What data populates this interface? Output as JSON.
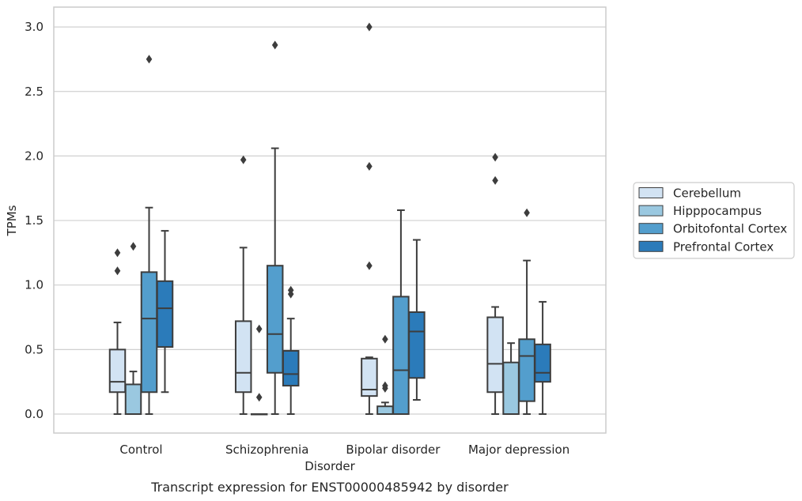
{
  "caption": "Transcript expression for ENST00000485942 by disorder",
  "chart_data": {
    "type": "box",
    "xlabel": "Disorder",
    "ylabel": "TPMs",
    "ylim": [
      -0.15,
      3.15
    ],
    "yticks": [
      "0.0",
      "0.5",
      "1.0",
      "1.5",
      "2.0",
      "2.5",
      "3.0"
    ],
    "grid": "horizontal",
    "legend_position": "right",
    "categories": [
      "Control",
      "Schizophrenia",
      "Bipolar disorder",
      "Major depression"
    ],
    "series": [
      {
        "name": "Cerebellum",
        "color": "#d2e3f3",
        "boxes": [
          {
            "whislo": 0.0,
            "q1": 0.17,
            "med": 0.25,
            "q3": 0.5,
            "whishi": 0.71,
            "fliers": [
              1.11,
              1.25
            ]
          },
          {
            "whislo": 0.0,
            "q1": 0.17,
            "med": 0.32,
            "q3": 0.72,
            "whishi": 1.29,
            "fliers": [
              1.97
            ]
          },
          {
            "whislo": 0.0,
            "q1": 0.14,
            "med": 0.19,
            "q3": 0.43,
            "whishi": 0.44,
            "fliers": [
              1.15,
              1.92,
              3.0
            ]
          },
          {
            "whislo": 0.0,
            "q1": 0.17,
            "med": 0.39,
            "q3": 0.75,
            "whishi": 0.83,
            "fliers": [
              1.81,
              1.99
            ]
          }
        ]
      },
      {
        "name": "Hipppocampus",
        "color": "#9ac8e0",
        "boxes": [
          {
            "whislo": 0.0,
            "q1": 0.0,
            "med": 0.0,
            "q3": 0.23,
            "whishi": 0.33,
            "fliers": [
              1.3
            ]
          },
          {
            "whislo": 0.0,
            "q1": 0.0,
            "med": 0.0,
            "q3": 0.0,
            "whishi": 0.0,
            "fliers": [
              0.13,
              0.66
            ]
          },
          {
            "whislo": 0.0,
            "q1": 0.0,
            "med": 0.0,
            "q3": 0.06,
            "whishi": 0.09,
            "fliers": [
              0.2,
              0.22,
              0.58
            ]
          },
          {
            "whislo": 0.0,
            "q1": 0.0,
            "med": 0.0,
            "q3": 0.4,
            "whishi": 0.55,
            "fliers": []
          }
        ]
      },
      {
        "name": "Orbitofontal Cortex",
        "color": "#539ecd",
        "boxes": [
          {
            "whislo": 0.0,
            "q1": 0.17,
            "med": 0.74,
            "q3": 1.1,
            "whishi": 1.6,
            "fliers": [
              2.75
            ]
          },
          {
            "whislo": 0.0,
            "q1": 0.32,
            "med": 0.62,
            "q3": 1.15,
            "whishi": 2.06,
            "fliers": [
              2.86
            ]
          },
          {
            "whislo": 0.0,
            "q1": 0.0,
            "med": 0.34,
            "q3": 0.91,
            "whishi": 1.58,
            "fliers": []
          },
          {
            "whislo": 0.0,
            "q1": 0.1,
            "med": 0.45,
            "q3": 0.58,
            "whishi": 1.19,
            "fliers": [
              1.56
            ]
          }
        ]
      },
      {
        "name": "Prefrontal Cortex",
        "color": "#2b7bba",
        "boxes": [
          {
            "whislo": 0.17,
            "q1": 0.52,
            "med": 0.82,
            "q3": 1.03,
            "whishi": 1.42,
            "fliers": []
          },
          {
            "whislo": 0.0,
            "q1": 0.22,
            "med": 0.31,
            "q3": 0.49,
            "whishi": 0.74,
            "fliers": [
              0.93,
              0.96
            ]
          },
          {
            "whislo": 0.11,
            "q1": 0.28,
            "med": 0.64,
            "q3": 0.79,
            "whishi": 1.35,
            "fliers": []
          },
          {
            "whislo": 0.0,
            "q1": 0.25,
            "med": 0.32,
            "q3": 0.54,
            "whishi": 0.87,
            "fliers": []
          }
        ]
      }
    ]
  }
}
